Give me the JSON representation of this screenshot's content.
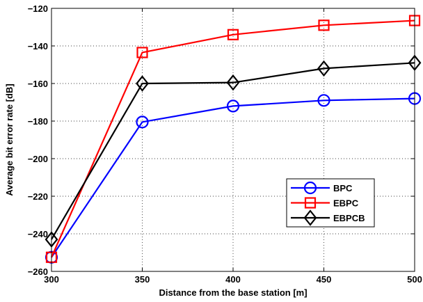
{
  "chart_data": {
    "type": "line",
    "title": "",
    "xlabel": "Distance from the base station [m]",
    "ylabel": "Average bit error rate [dB]",
    "x": [
      300,
      350,
      400,
      450,
      500
    ],
    "xlim": [
      300,
      500
    ],
    "ylim": [
      -260,
      -120
    ],
    "xticks": [
      "300",
      "350",
      "400",
      "450",
      "500"
    ],
    "yticks": [
      "−260",
      "−240",
      "−220",
      "−200",
      "−180",
      "−160",
      "−140",
      "−120"
    ],
    "grid": true,
    "legend_position": "right, below middle",
    "series": [
      {
        "name": "BPC",
        "values": [
          -252.5,
          -180.5,
          -172.0,
          -169.0,
          -168.0
        ],
        "color": "#0000ff",
        "marker": "circle"
      },
      {
        "name": "EBPC",
        "values": [
          -252.5,
          -143.5,
          -134.0,
          -129.0,
          -126.5
        ],
        "color": "#ff0000",
        "marker": "square"
      },
      {
        "name": "EBPCB",
        "values": [
          -243.0,
          -160.0,
          -159.5,
          -152.0,
          -149.0
        ],
        "color": "#000000",
        "marker": "diamond"
      }
    ]
  }
}
